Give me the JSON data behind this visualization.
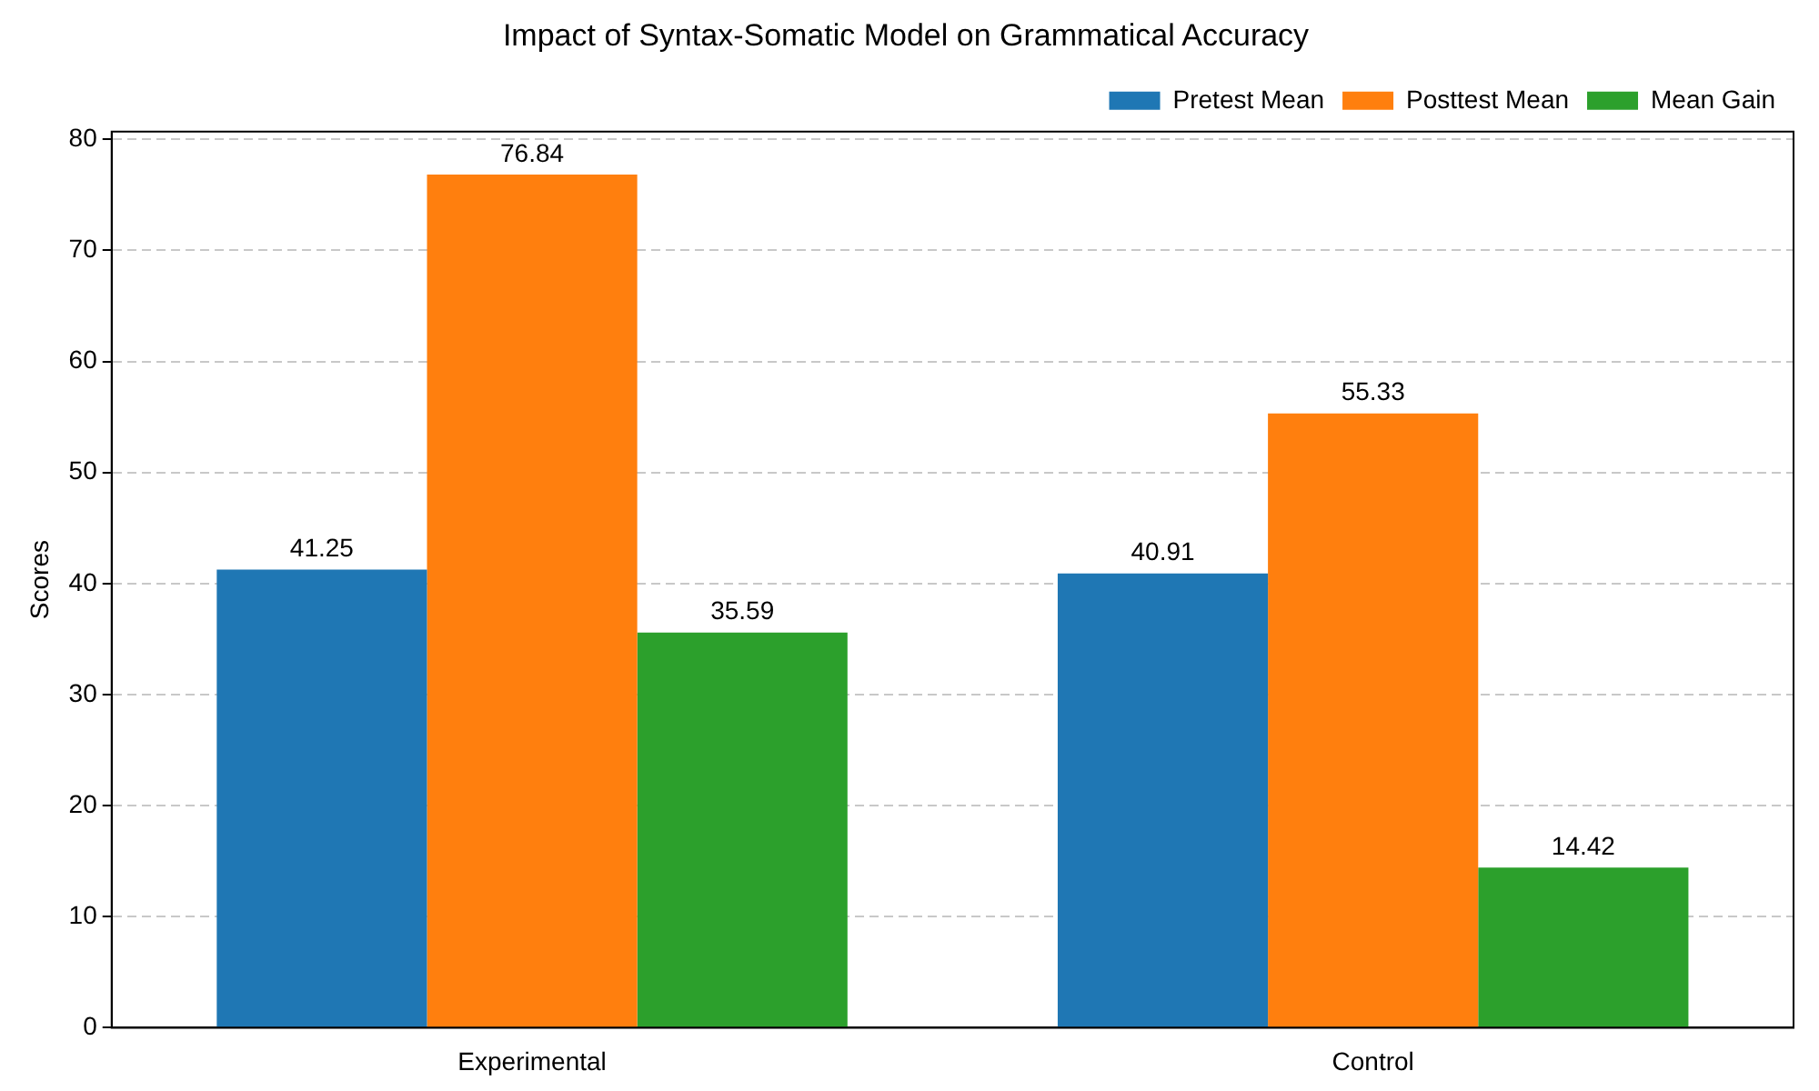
{
  "chart_data": {
    "type": "bar",
    "title": "Impact of Syntax-Somatic Model on Grammatical Accuracy",
    "ylabel": "Scores",
    "categories": [
      "Experimental",
      "Control"
    ],
    "series": [
      {
        "name": "Pretest Mean",
        "color": "#1f77b4",
        "values": [
          41.25,
          40.91
        ]
      },
      {
        "name": "Posttest Mean",
        "color": "#ff7f0e",
        "values": [
          76.84,
          55.33
        ]
      },
      {
        "name": "Mean Gain",
        "color": "#2ca02c",
        "values": [
          35.59,
          14.42
        ]
      }
    ],
    "ylim": [
      0,
      80.7
    ],
    "yticks": [
      0,
      10,
      20,
      30,
      40,
      50,
      60,
      70,
      80
    ],
    "grid": "y",
    "legend": "top right",
    "data_labels": true
  }
}
